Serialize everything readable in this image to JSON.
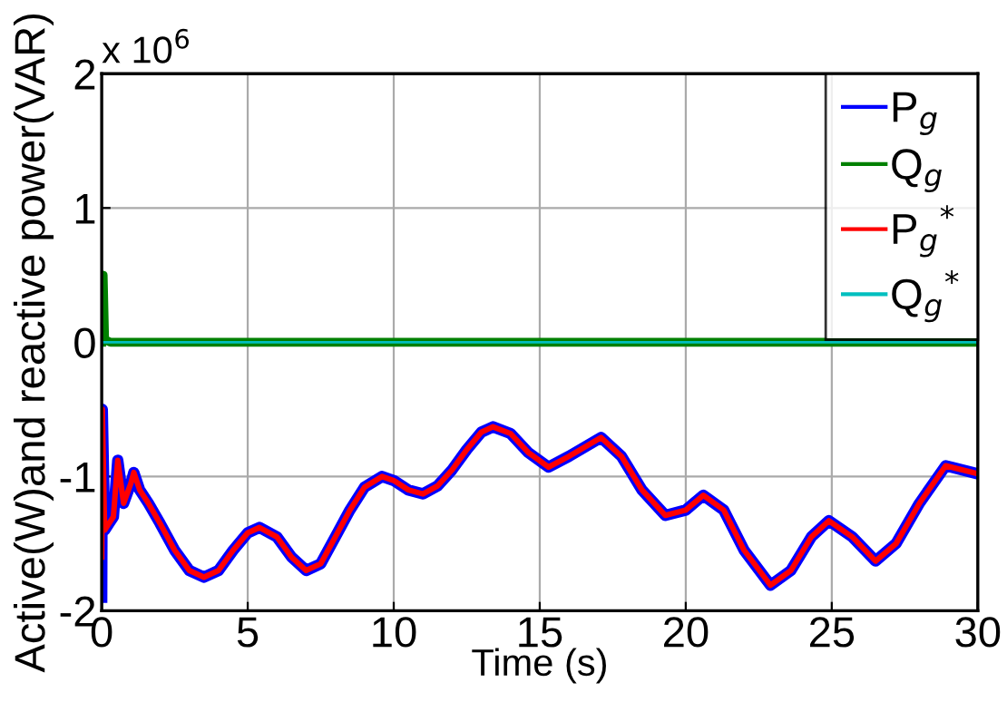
{
  "chart_data": {
    "type": "line",
    "xlabel": "Time (s)",
    "ylabel": "Active(W)and reactive power(VAR)",
    "annotations": [
      "x 10$^{6}$"
    ],
    "xlim": [
      0,
      30
    ],
    "xticks": [
      0,
      5,
      10,
      15,
      20,
      25,
      30
    ],
    "ylim": [
      -2,
      2
    ],
    "yticks": [
      -2,
      -1,
      0,
      1,
      2
    ],
    "grid": true,
    "legend": "top right",
    "marker": "none",
    "line_style": "solid",
    "series": [
      {
        "name": "P$_{g}$",
        "color": "#0000ff",
        "x": [
          0,
          0.02,
          0.1,
          0.25,
          0.4,
          0.55,
          0.75,
          1.0,
          1.1,
          1.3,
          1.6,
          2.0,
          2.5,
          3.0,
          3.5,
          4.0,
          4.5,
          5.0,
          5.4,
          6.0,
          6.5,
          7.0,
          7.5,
          8.0,
          8.5,
          9.0,
          9.6,
          10.0,
          10.5,
          11.0,
          11.5,
          12.0,
          12.5,
          13.0,
          13.4,
          14.0,
          14.6,
          15.3,
          16.0,
          17.1,
          17.8,
          18.5,
          19.3,
          20.0,
          20.6,
          21.3,
          22.0,
          22.9,
          23.6,
          24.3,
          24.9,
          25.7,
          26.5,
          27.2,
          28.0,
          28.9,
          30.0
        ],
        "values": [
          -1.9,
          -0.5,
          -1.4,
          -1.35,
          -1.3,
          -0.88,
          -1.2,
          -1.05,
          -0.97,
          -1.1,
          -1.2,
          -1.35,
          -1.55,
          -1.7,
          -1.75,
          -1.7,
          -1.55,
          -1.42,
          -1.38,
          -1.45,
          -1.6,
          -1.7,
          -1.65,
          -1.45,
          -1.25,
          -1.08,
          -1.0,
          -1.03,
          -1.1,
          -1.13,
          -1.07,
          -0.95,
          -0.8,
          -0.67,
          -0.63,
          -0.68,
          -0.82,
          -0.93,
          -0.85,
          -0.71,
          -0.85,
          -1.1,
          -1.29,
          -1.25,
          -1.14,
          -1.25,
          -1.55,
          -1.81,
          -1.7,
          -1.45,
          -1.33,
          -1.45,
          -1.63,
          -1.5,
          -1.2,
          -0.92,
          -0.98
        ]
      },
      {
        "name": "Q$_{g}$",
        "color": "#008000",
        "x": [
          0,
          0.05,
          0.1,
          0.3,
          5,
          10,
          15,
          20,
          25,
          30
        ],
        "values": [
          0,
          0.5,
          0.02,
          0,
          0,
          0,
          0,
          0,
          0,
          0
        ]
      },
      {
        "name": "P$_{g}$$^{*}$",
        "color": "#ff0000",
        "x": [
          0,
          0.02,
          0.1,
          0.25,
          0.4,
          0.55,
          0.75,
          1.0,
          1.1,
          1.3,
          1.6,
          2.0,
          2.5,
          3.0,
          3.5,
          4.0,
          4.5,
          5.0,
          5.4,
          6.0,
          6.5,
          7.0,
          7.5,
          8.0,
          8.5,
          9.0,
          9.6,
          10.0,
          10.5,
          11.0,
          11.5,
          12.0,
          12.5,
          13.0,
          13.4,
          14.0,
          14.6,
          15.3,
          16.0,
          17.1,
          17.8,
          18.5,
          19.3,
          20.0,
          20.6,
          21.3,
          22.0,
          22.9,
          23.6,
          24.3,
          24.9,
          25.7,
          26.5,
          27.2,
          28.0,
          28.9,
          30.0
        ],
        "values": [
          -1.6,
          -0.5,
          -1.4,
          -1.35,
          -1.3,
          -0.88,
          -1.2,
          -1.05,
          -0.97,
          -1.1,
          -1.2,
          -1.35,
          -1.55,
          -1.7,
          -1.75,
          -1.7,
          -1.55,
          -1.42,
          -1.38,
          -1.45,
          -1.6,
          -1.7,
          -1.65,
          -1.45,
          -1.25,
          -1.08,
          -1.0,
          -1.03,
          -1.1,
          -1.13,
          -1.07,
          -0.95,
          -0.8,
          -0.67,
          -0.63,
          -0.68,
          -0.82,
          -0.93,
          -0.85,
          -0.71,
          -0.85,
          -1.1,
          -1.29,
          -1.25,
          -1.14,
          -1.25,
          -1.55,
          -1.81,
          -1.7,
          -1.45,
          -1.33,
          -1.45,
          -1.63,
          -1.5,
          -1.2,
          -0.92,
          -0.98
        ]
      },
      {
        "name": "Q$_{g}$$^{*}$",
        "color": "#00bfbf",
        "x": [
          0,
          30
        ],
        "values": [
          0,
          0
        ]
      }
    ]
  }
}
